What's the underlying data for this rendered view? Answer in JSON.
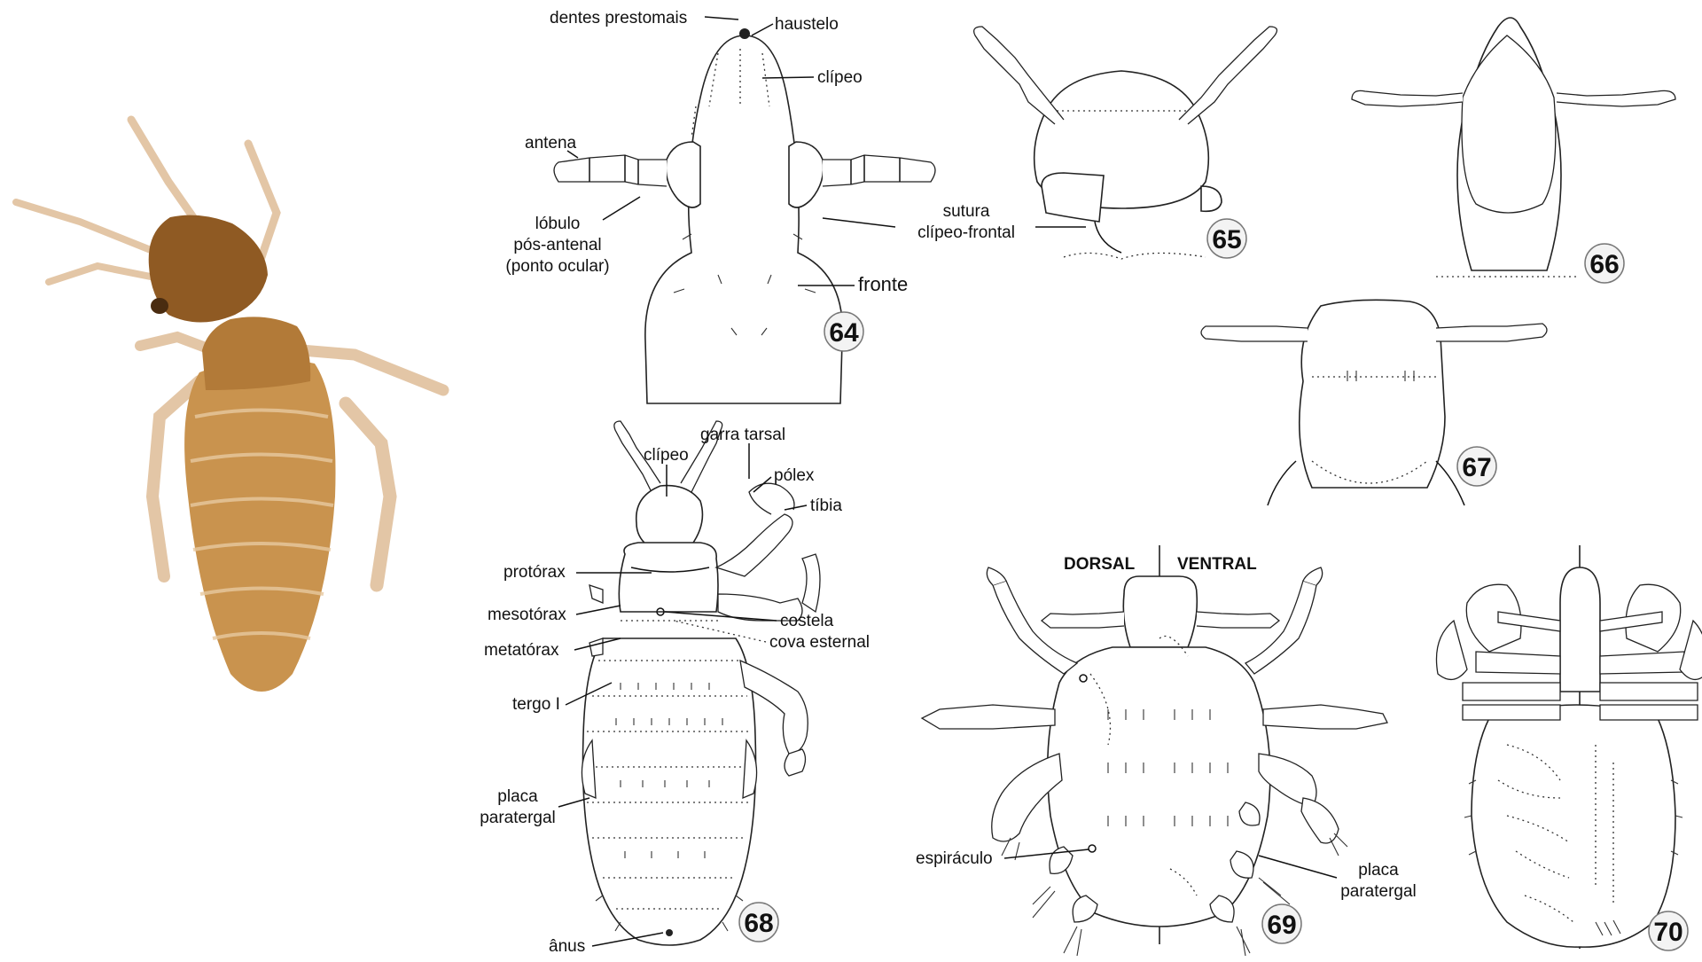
{
  "labels": {
    "dentes_prestomais": "dentes prestomais",
    "haustelo": "haustelo",
    "clipeo_64": "clípeo",
    "antena": "antena",
    "lobulo_1": "lóbulo",
    "lobulo_2": "pós-antenal",
    "lobulo_3": "(ponto ocular)",
    "sutura_1": "sutura",
    "sutura_2": "clípeo-frontal",
    "fronte": "fronte",
    "clipeo_68": "clípeo",
    "garra_tarsal": "garra tarsal",
    "polex": "pólex",
    "tibia": "tíbia",
    "protorax": "protórax",
    "mesotorax": "mesotórax",
    "metatorax": "metatórax",
    "tergo": "tergo I",
    "placa_68_1": "placa",
    "placa_68_2": "paratergal",
    "anus": "ânus",
    "costela": "costela",
    "cova_esternal": "cova esternal",
    "dorsal": "DORSAL",
    "ventral": "VENTRAL",
    "espiraculo": "espiráculo",
    "placa_69_1": "placa",
    "placa_69_2": "paratergal"
  },
  "figures": {
    "f64": "64",
    "f65": "65",
    "f66": "66",
    "f67": "67",
    "f68": "68",
    "f69": "69",
    "f70": "70"
  },
  "colors": {
    "photo_body": "#c9934e",
    "photo_head": "#8f5a23",
    "photo_legs": "#e3c6a6"
  }
}
